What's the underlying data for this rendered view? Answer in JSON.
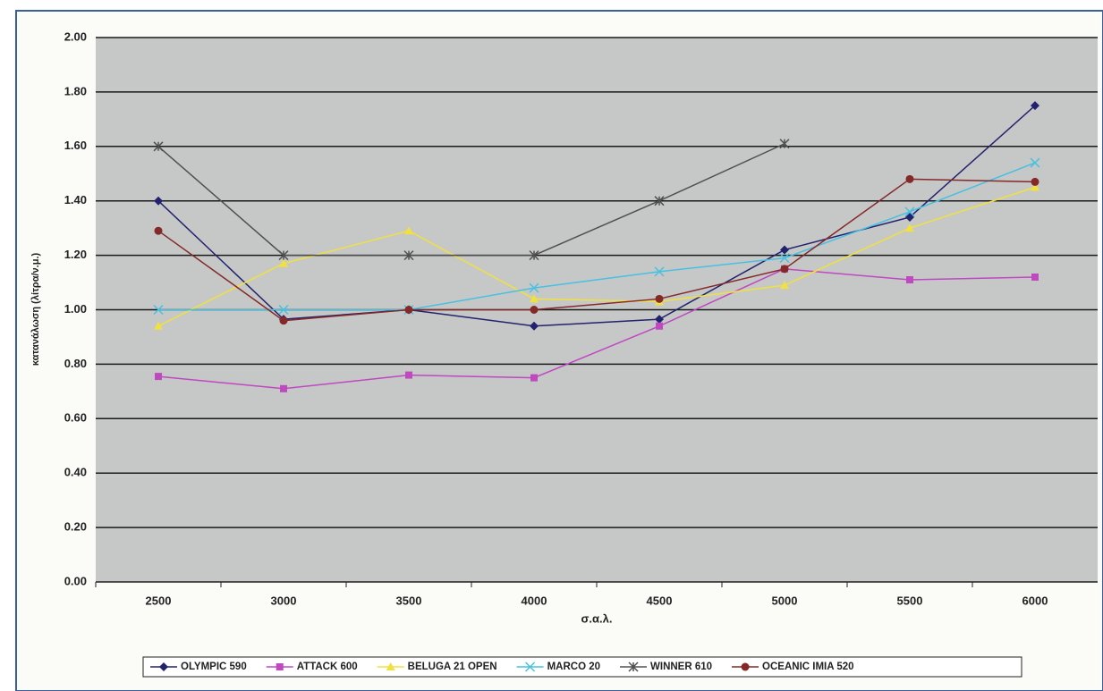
{
  "chart_data": {
    "type": "line",
    "x_label": "σ.α.λ.",
    "y_label": "κατανάλωση (λίτρα/ν.μ.)",
    "categories": [
      "2500",
      "3000",
      "3500",
      "4000",
      "4500",
      "5000",
      "5500",
      "6000"
    ],
    "series": [
      {
        "name": "OLYMPIC 590",
        "color": "#22226e",
        "marker": "diamond",
        "values": [
          1.4,
          0.965,
          1.0,
          0.94,
          0.965,
          1.22,
          1.34,
          1.75
        ]
      },
      {
        "name": "ATTACK 600",
        "color": "#c048c0",
        "marker": "square",
        "values": [
          0.755,
          0.71,
          0.76,
          0.75,
          0.94,
          1.15,
          1.11,
          1.12
        ]
      },
      {
        "name": "BELUGA 21 OPEN",
        "color": "#f0e040",
        "marker": "triangle",
        "values": [
          0.94,
          1.17,
          1.29,
          1.04,
          1.03,
          1.09,
          1.3,
          1.45
        ]
      },
      {
        "name": "MARCO 20",
        "color": "#48c0e0",
        "marker": "cross",
        "values": [
          1.0,
          1.0,
          1.0,
          1.08,
          1.14,
          1.19,
          1.36,
          1.54
        ]
      },
      {
        "name": "WINNER 610",
        "color": "#505050",
        "marker": "star",
        "values": [
          1.6,
          1.2,
          1.2,
          1.2,
          1.4,
          1.61,
          null,
          null
        ]
      },
      {
        "name": "OCEANIC IMIA 520",
        "color": "#842828",
        "marker": "circle",
        "values": [
          1.29,
          0.96,
          1.0,
          1.0,
          1.04,
          1.15,
          1.48,
          1.47
        ]
      }
    ],
    "ylim": [
      0,
      2
    ],
    "yticks": [
      {
        "value": 0,
        "label": "0.00"
      },
      {
        "value": 0.2,
        "label": "0.20"
      },
      {
        "value": 0.4,
        "label": "0.40"
      },
      {
        "value": 0.6,
        "label": "0.60"
      },
      {
        "value": 0.8,
        "label": "0.80"
      },
      {
        "value": 1,
        "label": "1.00"
      },
      {
        "value": 1.2,
        "label": "1.20"
      },
      {
        "value": 1.4,
        "label": "1.40"
      },
      {
        "value": 1.6,
        "label": "1.60"
      },
      {
        "value": 1.8,
        "label": "1.80"
      },
      {
        "value": 2,
        "label": "2.00"
      }
    ],
    "grid": true
  }
}
